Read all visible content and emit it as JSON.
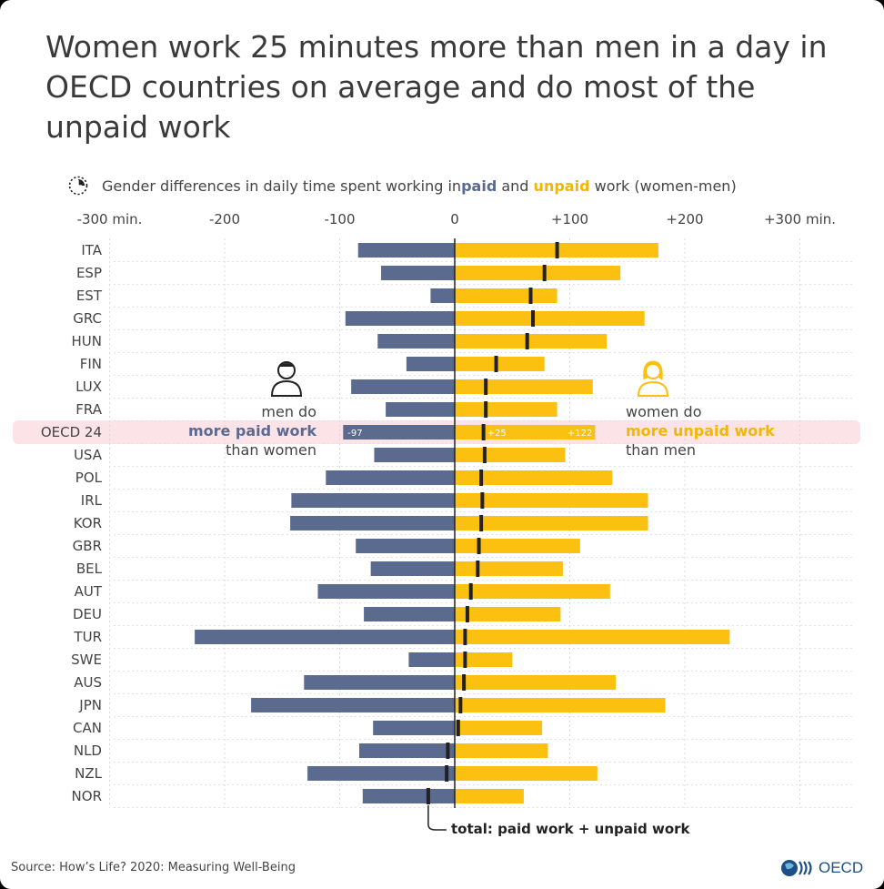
{
  "title": "Women work 25 minutes more than men in a day in OECD countries on average and do most of the unpaid work",
  "subtitle": {
    "prefix": "Gender differences in daily time spent working in ",
    "paid": "paid",
    "middle": " and ",
    "unpaid": "unpaid",
    "suffix": " work (women-men)"
  },
  "annotations": {
    "men_line1": "men do",
    "men_line2": "more paid work",
    "men_line3": "than women",
    "women_line1": "women do",
    "women_line2": "more unpaid work",
    "women_line3": "than men",
    "total_note": "total: paid work + unpaid work"
  },
  "source": "Source: How’s Life? 2020: Measuring Well-Being",
  "logo_text": "OECD",
  "colors": {
    "paid": "#5b6a8f",
    "unpaid": "#fcc010",
    "total": "#222222",
    "highlight": "#fbe3e7"
  },
  "chart_data": {
    "type": "bar",
    "orientation": "horizontal",
    "xlim": [
      -300,
      300
    ],
    "x_ticks": [
      {
        "value": -300,
        "label": "-300 min."
      },
      {
        "value": -200,
        "label": "-200"
      },
      {
        "value": -100,
        "label": "-100"
      },
      {
        "value": 0,
        "label": "0"
      },
      {
        "value": 100,
        "label": "+100"
      },
      {
        "value": 200,
        "label": "+200"
      },
      {
        "value": 300,
        "label": "+300 min."
      }
    ],
    "grid": true,
    "highlight_category": "OECD 24",
    "highlight_labels": {
      "paid": "-97",
      "total": "+25",
      "unpaid": "+122"
    },
    "categories": [
      "ITA",
      "ESP",
      "EST",
      "GRC",
      "HUN",
      "FIN",
      "LUX",
      "FRA",
      "OECD 24",
      "USA",
      "POL",
      "IRL",
      "KOR",
      "GBR",
      "BEL",
      "AUT",
      "DEU",
      "TUR",
      "SWE",
      "AUS",
      "JPN",
      "CAN",
      "NLD",
      "NZL",
      "NOR"
    ],
    "series": [
      {
        "name": "paid",
        "values": [
          -84,
          -64,
          -21,
          -95,
          -67,
          -42,
          -90,
          -60,
          -97,
          -70,
          -112,
          -142,
          -143,
          -86,
          -73,
          -119,
          -79,
          -226,
          -40,
          -131,
          -177,
          -71,
          -83,
          -128,
          -80
        ]
      },
      {
        "name": "unpaid",
        "values": [
          177,
          144,
          89,
          165,
          132,
          78,
          120,
          89,
          122,
          96,
          137,
          168,
          168,
          109,
          94,
          135,
          92,
          239,
          50,
          140,
          183,
          76,
          81,
          124,
          60
        ]
      },
      {
        "name": "total",
        "values": [
          89,
          78,
          66,
          68,
          63,
          36,
          27,
          27,
          25,
          26,
          23,
          24,
          23,
          21,
          20,
          14,
          11,
          9,
          9,
          8,
          5,
          3,
          -6,
          -7,
          -23
        ]
      }
    ]
  }
}
